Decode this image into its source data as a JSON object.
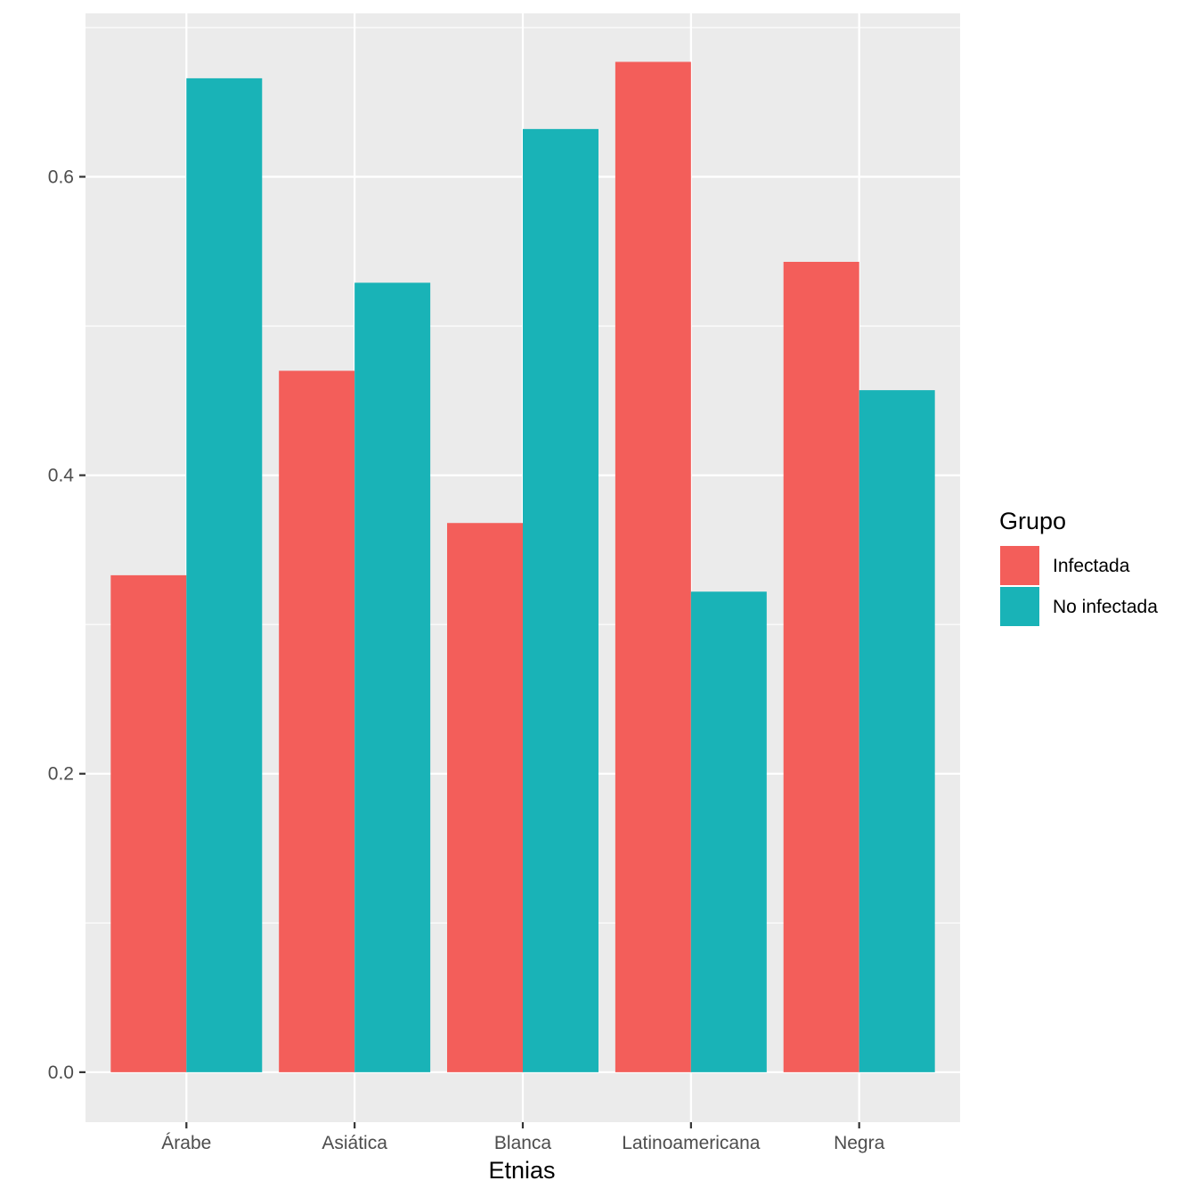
{
  "chart_data": {
    "type": "bar",
    "title": "",
    "xlabel": "Etnias",
    "ylabel": "",
    "categories": [
      "Árabe",
      "Asiática",
      "Blanca",
      "Latinoamericana",
      "Negra"
    ],
    "series": [
      {
        "name": "Infectada",
        "color": "#F35E5A",
        "values": [
          0.333,
          0.47,
          0.368,
          0.677,
          0.543
        ]
      },
      {
        "name": "No infectada",
        "color": "#19B3B7",
        "values": [
          0.666,
          0.529,
          0.632,
          0.322,
          0.457
        ]
      }
    ],
    "ylim": [
      -0.0335,
      0.7095
    ],
    "yticks": [
      0.0,
      0.2,
      0.4,
      0.6
    ],
    "ytick_labels": [
      "0.0",
      "0.2",
      "0.4",
      "0.6"
    ],
    "grid": true,
    "legend": {
      "title": "Grupo",
      "position": "right"
    },
    "colors": {
      "panel_background": "#EBEBEB",
      "grid": "#FFFFFF",
      "tick": "#333333"
    }
  }
}
